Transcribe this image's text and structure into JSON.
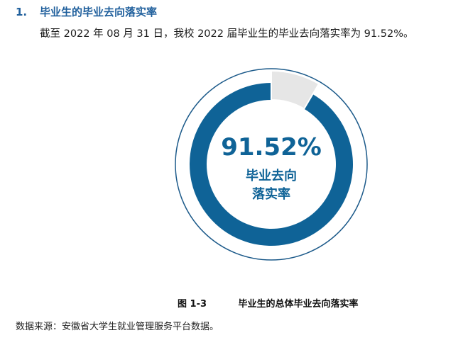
{
  "section": {
    "number": "1.",
    "title": "毕业生的毕业去向落实率",
    "intro": "截至 2022 年 08 月 31 日，我校 2022 届毕业生的毕业去向落实率为 91.52%。"
  },
  "chart_data": {
    "type": "pie",
    "variant": "donut",
    "slices": [
      {
        "value": 91.52
      },
      {
        "value": 8.48
      }
    ],
    "center_value": "91.52%",
    "center_label_line1": "毕业去向",
    "center_label_line2": "落实率",
    "colors": {
      "primary": "#0f6397",
      "remainder": "#e6e6e6",
      "outline": "#1c5a8a"
    }
  },
  "figure": {
    "number": "图 1-3",
    "caption": "毕业生的总体毕业去向落实率"
  },
  "source_note": "数据来源：安徽省大学生就业管理服务平台数据。"
}
